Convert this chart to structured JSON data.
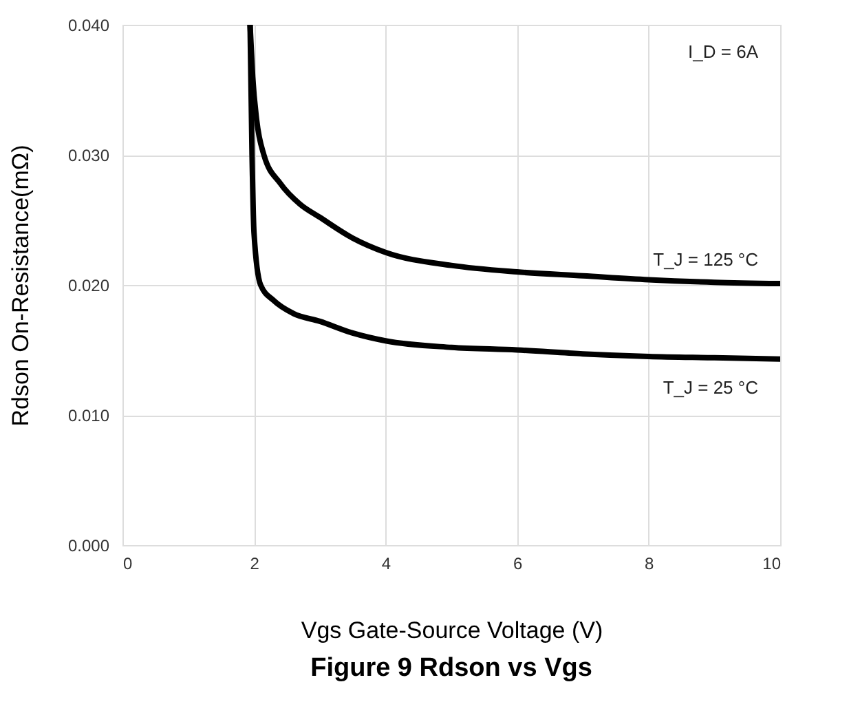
{
  "chart_data": {
    "type": "line",
    "title": "Figure 9 Rdson vs Vgs",
    "xlabel": "Vgs Gate-Source Voltage (V)",
    "ylabel": "Rdson On-Resistance(mΩ)",
    "xlim": [
      0,
      10
    ],
    "xticks": [
      0,
      2,
      4,
      6,
      8,
      10
    ],
    "ylim": [
      0,
      0.04
    ],
    "yticks": [
      {
        "value": 0,
        "label": "0.000"
      },
      {
        "value": 0.01,
        "label": "0.010"
      },
      {
        "value": 0.02,
        "label": "0.020"
      },
      {
        "value": 0.03,
        "label": "0.030"
      },
      {
        "value": 0.04,
        "label": "0.040"
      }
    ],
    "grid": true,
    "marker": "none",
    "line_style": "solid",
    "series": [
      {
        "color": "#000000",
        "x": [
          1.94,
          1.98,
          2.04,
          2.15,
          2.4,
          2.7,
          3,
          3.5,
          4,
          5,
          6,
          7,
          8,
          9,
          10
        ],
        "values": [
          0.04,
          0.036,
          0.0327,
          0.03,
          0.0278,
          0.0262,
          0.0252,
          0.0236,
          0.0225,
          0.0215,
          0.021,
          0.0207,
          0.0204,
          0.0202,
          0.0201
        ]
      },
      {
        "color": "#000000",
        "x": [
          1.94,
          1.97,
          2.0,
          2.1,
          2.3,
          2.6,
          3,
          3.5,
          4,
          5,
          6,
          7,
          8,
          9,
          10
        ],
        "values": [
          0.04,
          0.03,
          0.024,
          0.02,
          0.0188,
          0.0178,
          0.0172,
          0.0163,
          0.0157,
          0.0152,
          0.015,
          0.0147,
          0.0145,
          0.0144,
          0.0143
        ]
      }
    ],
    "annotations": [
      "I_D = 6A",
      "T_J = 125 °C",
      "T_J = 25 °C"
    ]
  }
}
